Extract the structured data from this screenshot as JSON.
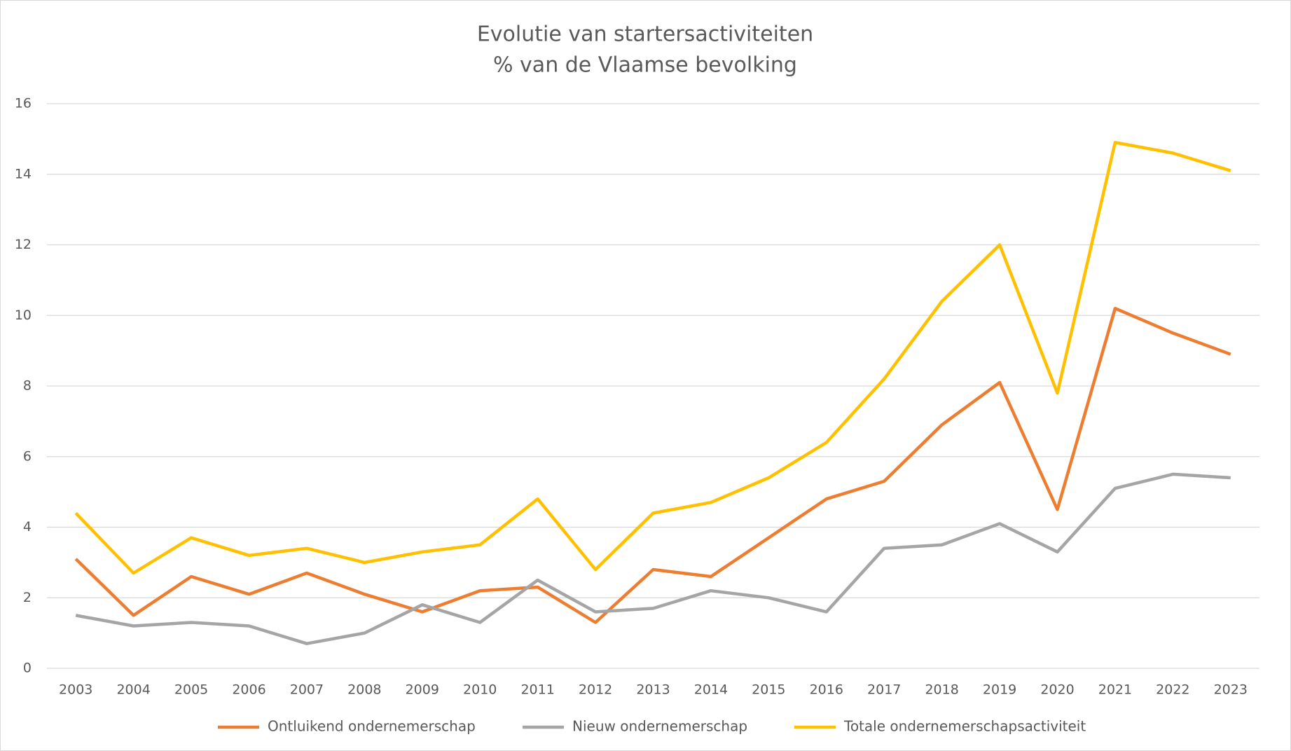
{
  "chart_data": {
    "type": "line",
    "title": "Evolutie van startersactiviteiten",
    "subtitle": "% van de Vlaamse bevolking",
    "categories": [
      "2003",
      "2004",
      "2005",
      "2006",
      "2007",
      "2008",
      "2009",
      "2010",
      "2011",
      "2012",
      "2013",
      "2014",
      "2015",
      "2016",
      "2017",
      "2018",
      "2019",
      "2020",
      "2021",
      "2022",
      "2023"
    ],
    "series": [
      {
        "name": "Ontluikend ondernemerschap",
        "color": "#ed7d31",
        "values": [
          3.1,
          1.5,
          2.6,
          2.1,
          2.7,
          2.1,
          1.6,
          2.2,
          2.3,
          1.3,
          2.8,
          2.6,
          3.7,
          4.8,
          5.3,
          6.9,
          8.1,
          4.5,
          10.2,
          9.5,
          8.9
        ]
      },
      {
        "name": "Nieuw ondernemerschap",
        "color": "#a5a5a5",
        "values": [
          1.5,
          1.2,
          1.3,
          1.2,
          0.7,
          1.0,
          1.8,
          1.3,
          2.5,
          1.6,
          1.7,
          2.2,
          2.0,
          1.6,
          3.4,
          3.5,
          4.1,
          3.3,
          5.1,
          5.5,
          5.4
        ]
      },
      {
        "name": "Totale ondernemerschapsactiviteit",
        "color": "#ffc000",
        "values": [
          4.4,
          2.7,
          3.7,
          3.2,
          3.4,
          3.0,
          3.3,
          3.5,
          4.8,
          2.8,
          4.4,
          4.7,
          5.4,
          6.4,
          8.2,
          10.4,
          12.0,
          7.8,
          14.9,
          14.6,
          14.1
        ]
      }
    ],
    "ylim": [
      0,
      16
    ],
    "yticks": [
      0,
      2,
      4,
      6,
      8,
      10,
      12,
      14,
      16
    ],
    "grid": true,
    "legend": "bottom"
  }
}
